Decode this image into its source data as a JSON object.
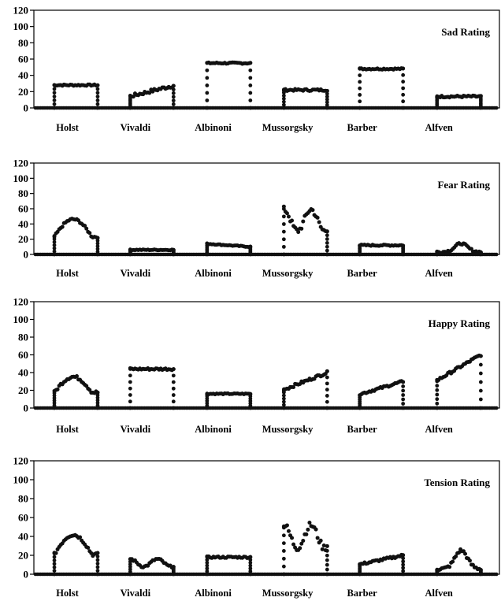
{
  "chart_data": [
    {
      "type": "scatter",
      "title": "Sad Rating",
      "ylim": [
        0,
        120
      ],
      "yticks": [
        0,
        20,
        40,
        60,
        80,
        100,
        120
      ],
      "categories": [
        "Holst",
        "Vivaldi",
        "Albinoni",
        "Mussorgsky",
        "Barber",
        "Alfven"
      ],
      "segments": [
        {
          "category": "Holst",
          "level": 28,
          "var": 3,
          "shape": "plateau",
          "trend": 0
        },
        {
          "category": "Vivaldi",
          "level": 22,
          "var": 7,
          "shape": "ramp",
          "trend": 0
        },
        {
          "category": "Albinoni",
          "level": 55,
          "var": 3,
          "shape": "plateau",
          "trend": 0
        },
        {
          "category": "Mussorgsky",
          "level": 22,
          "var": 4,
          "shape": "plateau",
          "trend": 0
        },
        {
          "category": "Barber",
          "level": 48,
          "var": 3,
          "shape": "plateau",
          "trend": 0
        },
        {
          "category": "Alfven",
          "level": 14,
          "var": 4,
          "shape": "plateau",
          "trend": 0
        }
      ]
    },
    {
      "type": "scatter",
      "title": "Fear Rating",
      "ylim": [
        0,
        120
      ],
      "yticks": [
        0,
        20,
        40,
        60,
        80,
        100,
        120
      ],
      "categories": [
        "Holst",
        "Vivaldi",
        "Albinoni",
        "Mussorgsky",
        "Barber",
        "Alfven"
      ],
      "segments": [
        {
          "category": "Holst",
          "level": 42,
          "var": 5,
          "shape": "arch",
          "trend": 0
        },
        {
          "category": "Vivaldi",
          "level": 6,
          "var": 2,
          "shape": "plateau",
          "trend": 0
        },
        {
          "category": "Albinoni",
          "level": 14,
          "var": 2,
          "shape": "plateau",
          "trend": -4
        },
        {
          "category": "Mussorgsky",
          "level": 45,
          "var": 14,
          "shape": "wave",
          "trend": 0
        },
        {
          "category": "Barber",
          "level": 12,
          "var": 3,
          "shape": "plateau",
          "trend": 0
        },
        {
          "category": "Alfven",
          "level": 8,
          "var": 5,
          "shape": "bump",
          "trend": 0
        }
      ]
    },
    {
      "type": "scatter",
      "title": "Happy Rating",
      "ylim": [
        0,
        120
      ],
      "yticks": [
        0,
        20,
        40,
        60,
        80,
        100,
        120
      ],
      "categories": [
        "Holst",
        "Vivaldi",
        "Albinoni",
        "Mussorgsky",
        "Barber",
        "Alfven"
      ],
      "segments": [
        {
          "category": "Holst",
          "level": 32,
          "var": 6,
          "shape": "arch",
          "trend": 0
        },
        {
          "category": "Vivaldi",
          "level": 44,
          "var": 4,
          "shape": "plateau",
          "trend": 0
        },
        {
          "category": "Albinoni",
          "level": 16,
          "var": 2,
          "shape": "plateau",
          "trend": 0
        },
        {
          "category": "Mussorgsky",
          "level": 32,
          "var": 5,
          "shape": "ramp",
          "trend": 0
        },
        {
          "category": "Barber",
          "level": 24,
          "var": 4,
          "shape": "ramp",
          "trend": 0
        },
        {
          "category": "Alfven",
          "level": 48,
          "var": 5,
          "shape": "ramp",
          "trend": 0
        }
      ]
    },
    {
      "type": "scatter",
      "title": "Tension Rating",
      "ylim": [
        0,
        120
      ],
      "yticks": [
        0,
        20,
        40,
        60,
        80,
        100,
        120
      ],
      "categories": [
        "Holst",
        "Vivaldi",
        "Albinoni",
        "Mussorgsky",
        "Barber",
        "Alfven"
      ],
      "segments": [
        {
          "category": "Holst",
          "level": 38,
          "var": 6,
          "shape": "arch",
          "trend": 0
        },
        {
          "category": "Vivaldi",
          "level": 12,
          "var": 4,
          "shape": "wave",
          "trend": 0
        },
        {
          "category": "Albinoni",
          "level": 18,
          "var": 3,
          "shape": "plateau",
          "trend": 0
        },
        {
          "category": "Mussorgsky",
          "level": 40,
          "var": 12,
          "shape": "wave",
          "trend": 0
        },
        {
          "category": "Barber",
          "level": 16,
          "var": 4,
          "shape": "ramp",
          "trend": 0
        },
        {
          "category": "Alfven",
          "level": 14,
          "var": 6,
          "shape": "bump",
          "trend": 0
        }
      ]
    }
  ]
}
